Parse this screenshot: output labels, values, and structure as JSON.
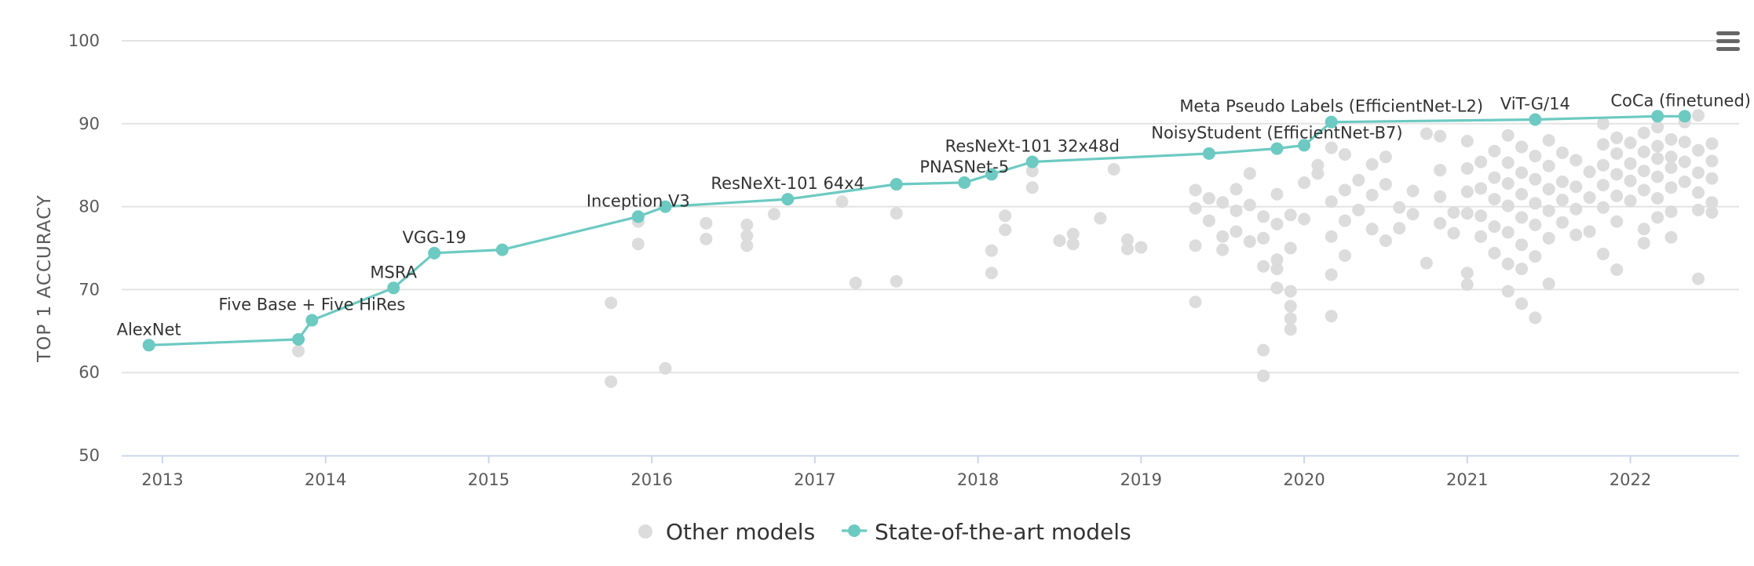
{
  "chart_data": {
    "type": "scatter",
    "ylabel": "TOP 1 ACCURACY",
    "ylim": [
      50,
      100
    ],
    "yticks": [
      "50",
      "60",
      "70",
      "80",
      "90",
      "100"
    ],
    "xlim": [
      "2012-10",
      "2022-09"
    ],
    "xticks": [
      "2013",
      "2014",
      "2015",
      "2016",
      "2017",
      "2018",
      "2019",
      "2020",
      "2021",
      "2022"
    ],
    "grid": true,
    "legend_position": "bottom",
    "menu_icon": "hamburger-menu-icon",
    "colors": {
      "sota": "#6ccac2",
      "other": "#dcdcdc",
      "grid": "#e3e3e3",
      "axis": "#ccd6eb"
    },
    "series": [
      {
        "name": "Other models",
        "marker": "circle",
        "points": [
          [
            "2013-11",
            62.6
          ],
          [
            "2015-10",
            68.4
          ],
          [
            "2015-10",
            58.9
          ],
          [
            "2015-12",
            78.2
          ],
          [
            "2015-12",
            75.5
          ],
          [
            "2016-02",
            60.5
          ],
          [
            "2016-05",
            78.0
          ],
          [
            "2016-05",
            76.1
          ],
          [
            "2016-08",
            77.8
          ],
          [
            "2016-08",
            76.5
          ],
          [
            "2016-08",
            75.3
          ],
          [
            "2016-10",
            79.1
          ],
          [
            "2017-03",
            80.6
          ],
          [
            "2017-04",
            70.8
          ],
          [
            "2017-07",
            71.0
          ],
          [
            "2017-07",
            79.2
          ],
          [
            "2018-02",
            74.7
          ],
          [
            "2018-02",
            72.0
          ],
          [
            "2018-03",
            78.9
          ],
          [
            "2018-03",
            77.2
          ],
          [
            "2018-05",
            84.3
          ],
          [
            "2018-05",
            82.3
          ],
          [
            "2018-07",
            75.9
          ],
          [
            "2018-08",
            76.7
          ],
          [
            "2018-08",
            75.5
          ],
          [
            "2018-10",
            78.6
          ],
          [
            "2018-11",
            84.5
          ],
          [
            "2018-12",
            76.0
          ],
          [
            "2018-12",
            74.9
          ],
          [
            "2019-01",
            75.1
          ],
          [
            "2019-05",
            68.5
          ],
          [
            "2019-05",
            75.3
          ],
          [
            "2019-05",
            79.8
          ],
          [
            "2019-05",
            82.0
          ],
          [
            "2019-06",
            81.0
          ],
          [
            "2019-06",
            78.3
          ],
          [
            "2019-07",
            80.5
          ],
          [
            "2019-07",
            76.4
          ],
          [
            "2019-07",
            74.8
          ],
          [
            "2019-08",
            82.1
          ],
          [
            "2019-08",
            79.5
          ],
          [
            "2019-08",
            77.0
          ],
          [
            "2019-09",
            84.0
          ],
          [
            "2019-09",
            80.2
          ],
          [
            "2019-09",
            75.8
          ],
          [
            "2019-10",
            78.8
          ],
          [
            "2019-10",
            76.2
          ],
          [
            "2019-10",
            72.8
          ],
          [
            "2019-11",
            81.5
          ],
          [
            "2019-11",
            77.9
          ],
          [
            "2019-11",
            73.6
          ],
          [
            "2019-12",
            79.0
          ],
          [
            "2019-12",
            75.0
          ],
          [
            "2020-01",
            82.9
          ],
          [
            "2020-01",
            78.5
          ],
          [
            "2019-10",
            62.7
          ],
          [
            "2019-10",
            59.6
          ],
          [
            "2019-11",
            72.5
          ],
          [
            "2019-11",
            70.2
          ],
          [
            "2019-12",
            69.8
          ],
          [
            "2019-12",
            68.0
          ],
          [
            "2019-12",
            66.5
          ],
          [
            "2019-12",
            65.2
          ],
          [
            "2020-02",
            85.0
          ],
          [
            "2020-02",
            84.0
          ],
          [
            "2020-03",
            87.1
          ],
          [
            "2020-03",
            80.6
          ],
          [
            "2020-03",
            76.4
          ],
          [
            "2020-03",
            71.8
          ],
          [
            "2020-03",
            66.8
          ],
          [
            "2020-04",
            86.3
          ],
          [
            "2020-04",
            82.0
          ],
          [
            "2020-04",
            78.3
          ],
          [
            "2020-04",
            74.1
          ],
          [
            "2020-05",
            83.2
          ],
          [
            "2020-05",
            79.6
          ],
          [
            "2020-06",
            85.1
          ],
          [
            "2020-06",
            81.4
          ],
          [
            "2020-06",
            77.3
          ],
          [
            "2020-07",
            86.0
          ],
          [
            "2020-07",
            82.7
          ],
          [
            "2020-07",
            75.9
          ],
          [
            "2020-08",
            79.9
          ],
          [
            "2020-08",
            77.4
          ],
          [
            "2020-09",
            81.9
          ],
          [
            "2020-09",
            79.1
          ],
          [
            "2020-10",
            88.8
          ],
          [
            "2020-10",
            73.2
          ],
          [
            "2020-11",
            88.5
          ],
          [
            "2020-11",
            84.4
          ],
          [
            "2020-11",
            81.2
          ],
          [
            "2020-11",
            78.0
          ],
          [
            "2020-12",
            79.3
          ],
          [
            "2020-12",
            76.8
          ],
          [
            "2021-01",
            87.9
          ],
          [
            "2021-01",
            84.6
          ],
          [
            "2021-01",
            81.8
          ],
          [
            "2021-01",
            79.2
          ],
          [
            "2021-01",
            72.0
          ],
          [
            "2021-01",
            70.6
          ],
          [
            "2021-02",
            85.4
          ],
          [
            "2021-02",
            82.2
          ],
          [
            "2021-02",
            78.9
          ],
          [
            "2021-02",
            76.4
          ],
          [
            "2021-03",
            86.7
          ],
          [
            "2021-03",
            83.5
          ],
          [
            "2021-03",
            80.9
          ],
          [
            "2021-03",
            77.6
          ],
          [
            "2021-03",
            74.4
          ],
          [
            "2021-04",
            88.6
          ],
          [
            "2021-04",
            85.3
          ],
          [
            "2021-04",
            82.8
          ],
          [
            "2021-04",
            80.1
          ],
          [
            "2021-04",
            76.9
          ],
          [
            "2021-04",
            73.1
          ],
          [
            "2021-04",
            69.8
          ],
          [
            "2021-05",
            87.2
          ],
          [
            "2021-05",
            84.1
          ],
          [
            "2021-05",
            81.5
          ],
          [
            "2021-05",
            78.7
          ],
          [
            "2021-05",
            75.4
          ],
          [
            "2021-05",
            72.5
          ],
          [
            "2021-05",
            68.3
          ],
          [
            "2021-06",
            86.1
          ],
          [
            "2021-06",
            83.3
          ],
          [
            "2021-06",
            80.4
          ],
          [
            "2021-06",
            77.8
          ],
          [
            "2021-06",
            74.0
          ],
          [
            "2021-06",
            66.6
          ],
          [
            "2021-07",
            88.0
          ],
          [
            "2021-07",
            84.9
          ],
          [
            "2021-07",
            82.1
          ],
          [
            "2021-07",
            79.5
          ],
          [
            "2021-07",
            76.2
          ],
          [
            "2021-07",
            70.7
          ],
          [
            "2021-08",
            86.5
          ],
          [
            "2021-08",
            83.0
          ],
          [
            "2021-08",
            80.8
          ],
          [
            "2021-08",
            78.1
          ],
          [
            "2021-09",
            85.6
          ],
          [
            "2021-09",
            82.4
          ],
          [
            "2021-09",
            79.7
          ],
          [
            "2021-09",
            76.6
          ],
          [
            "2021-10",
            84.2
          ],
          [
            "2021-10",
            81.1
          ],
          [
            "2021-10",
            77.0
          ],
          [
            "2021-11",
            90.0
          ],
          [
            "2021-11",
            87.5
          ],
          [
            "2021-11",
            85.0
          ],
          [
            "2021-11",
            82.6
          ],
          [
            "2021-11",
            79.9
          ],
          [
            "2021-11",
            74.3
          ],
          [
            "2021-12",
            88.3
          ],
          [
            "2021-12",
            86.4
          ],
          [
            "2021-12",
            83.9
          ],
          [
            "2021-12",
            81.3
          ],
          [
            "2021-12",
            78.2
          ],
          [
            "2021-12",
            72.4
          ],
          [
            "2022-01",
            87.7
          ],
          [
            "2022-01",
            85.2
          ],
          [
            "2022-01",
            83.1
          ],
          [
            "2022-01",
            80.7
          ],
          [
            "2022-02",
            88.9
          ],
          [
            "2022-02",
            86.6
          ],
          [
            "2022-02",
            84.3
          ],
          [
            "2022-02",
            82.0
          ],
          [
            "2022-02",
            77.3
          ],
          [
            "2022-02",
            75.6
          ],
          [
            "2022-03",
            89.6
          ],
          [
            "2022-03",
            87.3
          ],
          [
            "2022-03",
            85.8
          ],
          [
            "2022-03",
            83.6
          ],
          [
            "2022-03",
            81.0
          ],
          [
            "2022-03",
            78.7
          ],
          [
            "2022-04",
            88.1
          ],
          [
            "2022-04",
            86.0
          ],
          [
            "2022-04",
            84.7
          ],
          [
            "2022-04",
            82.3
          ],
          [
            "2022-04",
            79.4
          ],
          [
            "2022-04",
            76.3
          ],
          [
            "2022-05",
            90.2
          ],
          [
            "2022-05",
            87.8
          ],
          [
            "2022-05",
            85.4
          ],
          [
            "2022-05",
            83.0
          ],
          [
            "2022-06",
            91.0
          ],
          [
            "2022-06",
            86.8
          ],
          [
            "2022-06",
            84.1
          ],
          [
            "2022-06",
            81.7
          ],
          [
            "2022-06",
            79.6
          ],
          [
            "2022-06",
            71.3
          ],
          [
            "2022-07",
            87.6
          ],
          [
            "2022-07",
            85.5
          ],
          [
            "2022-07",
            83.4
          ],
          [
            "2022-07",
            80.5
          ],
          [
            "2022-07",
            79.3
          ]
        ]
      },
      {
        "name": "State-of-the-art models",
        "marker": "circle-line",
        "points": [
          {
            "x": "2012-12",
            "y": 63.3,
            "label": "AlexNet"
          },
          {
            "x": "2013-11",
            "y": 64.0,
            "label": ""
          },
          {
            "x": "2013-12",
            "y": 66.3,
            "label": "Five Base + Five HiRes"
          },
          {
            "x": "2014-06",
            "y": 70.2,
            "label": "MSRA"
          },
          {
            "x": "2014-09",
            "y": 74.4,
            "label": "VGG-19"
          },
          {
            "x": "2015-02",
            "y": 74.8,
            "label": ""
          },
          {
            "x": "2015-12",
            "y": 78.8,
            "label": "Inception V3"
          },
          {
            "x": "2016-02",
            "y": 80.0,
            "label": ""
          },
          {
            "x": "2016-11",
            "y": 80.9,
            "label": "ResNeXt-101 64x4"
          },
          {
            "x": "2017-07",
            "y": 82.7,
            "label": ""
          },
          {
            "x": "2017-12",
            "y": 82.9,
            "label": "PNASNet-5"
          },
          {
            "x": "2018-02",
            "y": 83.9,
            "label": ""
          },
          {
            "x": "2018-05",
            "y": 85.4,
            "label": "ResNeXt-101 32x48d"
          },
          {
            "x": "2019-06",
            "y": 86.4,
            "label": ""
          },
          {
            "x": "2019-11",
            "y": 87.0,
            "label": "NoisyStudent (EfficientNet-B7)"
          },
          {
            "x": "2020-01",
            "y": 87.4,
            "label": ""
          },
          {
            "x": "2020-03",
            "y": 90.2,
            "label": "Meta Pseudo Labels (EfficientNet-L2)"
          },
          {
            "x": "2021-06",
            "y": 90.5,
            "label": "ViT-G/14"
          },
          {
            "x": "2022-03",
            "y": 90.9,
            "label": ""
          },
          {
            "x": "2022-05",
            "y": 90.9,
            "label": "CoCa (finetuned)"
          }
        ]
      }
    ]
  }
}
